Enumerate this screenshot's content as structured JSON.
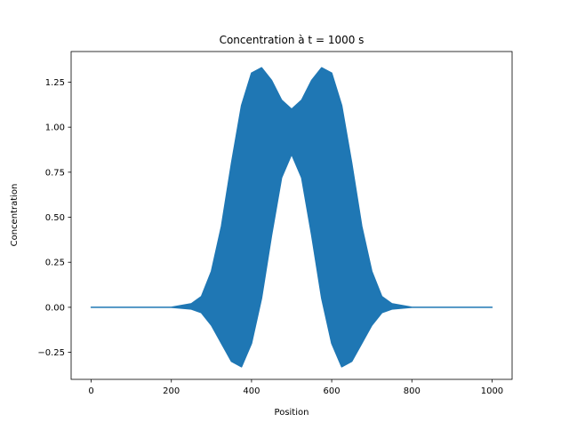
{
  "chart_data": {
    "type": "area",
    "title": "Concentration à t = 1000 s",
    "xlabel": "Position",
    "ylabel": "Concentration",
    "xlim": [
      -50,
      1050
    ],
    "ylim": [
      -0.4,
      1.42
    ],
    "x_ticks": [
      0,
      200,
      400,
      600,
      800,
      1000
    ],
    "x_tick_labels": [
      "0",
      "200",
      "400",
      "600",
      "800",
      "1000"
    ],
    "y_ticks": [
      -0.25,
      0.0,
      0.25,
      0.5,
      0.75,
      1.0,
      1.25
    ],
    "y_tick_labels": [
      "−0.25",
      "0.00",
      "0.25",
      "0.50",
      "0.75",
      "1.00",
      "1.25"
    ],
    "grid": false,
    "color": "#1f77b4",
    "series": [
      {
        "x": [
          0,
          200,
          250,
          275,
          300,
          325,
          350,
          375,
          400,
          425,
          450,
          475,
          500,
          525,
          550,
          575,
          600,
          625,
          650,
          675,
          700,
          725,
          750,
          800,
          1000
        ],
        "upper": [
          0.0,
          0.0,
          0.02,
          0.06,
          0.2,
          0.45,
          0.8,
          1.12,
          1.3,
          1.33,
          1.26,
          1.15,
          1.1,
          1.15,
          1.26,
          1.33,
          1.3,
          1.12,
          0.8,
          0.45,
          0.2,
          0.06,
          0.02,
          0.0,
          0.0
        ],
        "lower": [
          0.0,
          0.0,
          -0.01,
          -0.03,
          -0.1,
          -0.2,
          -0.3,
          -0.33,
          -0.2,
          0.05,
          0.4,
          0.72,
          0.85,
          0.72,
          0.4,
          0.05,
          -0.2,
          -0.33,
          -0.3,
          -0.2,
          -0.1,
          -0.03,
          -0.01,
          0.0,
          0.0
        ]
      }
    ]
  }
}
